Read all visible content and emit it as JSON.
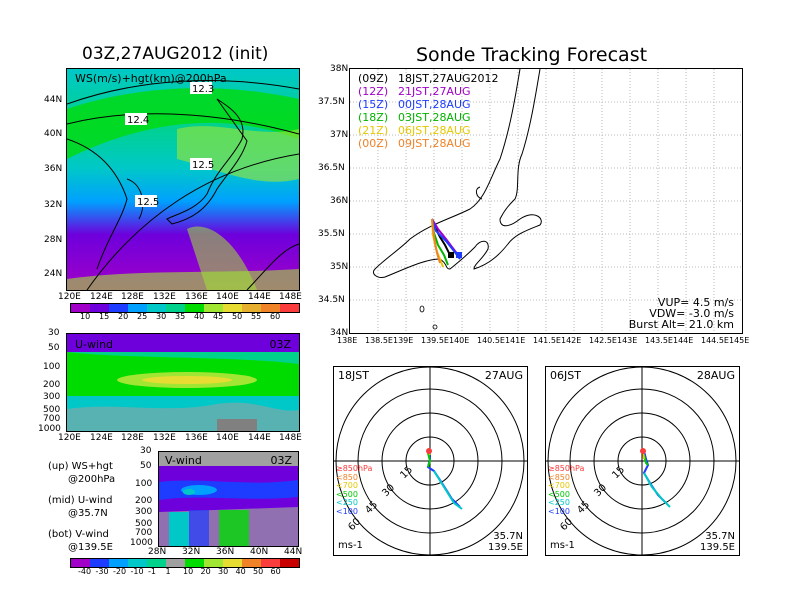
{
  "left": {
    "title": "03Z,27AUG2012 (init)",
    "map": {
      "label": "WS(m/s)+hgt(km)@200hPa",
      "lat_ticks": [
        "44N",
        "40N",
        "36N",
        "32N",
        "28N",
        "24N"
      ],
      "lon_ticks": [
        "120E",
        "124E",
        "128E",
        "132E",
        "136E",
        "140E",
        "144E",
        "148E"
      ],
      "contour_labels": [
        "12.3",
        "12.4",
        "12.5",
        "12.5"
      ]
    },
    "ws_colorbar": [
      "10",
      "15",
      "20",
      "25",
      "30",
      "35",
      "40",
      "45",
      "50",
      "55",
      "60"
    ],
    "ws_colors": [
      "#a000c8",
      "#6e00dc",
      "#1e3cff",
      "#00a0ff",
      "#00c8c8",
      "#00d28c",
      "#00dc00",
      "#a0e632",
      "#e6dc32",
      "#e6af2d",
      "#f08228",
      "#fa3c3c"
    ],
    "uwind": {
      "label": "U-wind",
      "time": "03Z",
      "p_ticks": [
        "30",
        "50",
        "100",
        "200",
        "300",
        "500",
        "700",
        "1000"
      ],
      "lon_ticks": [
        "120E",
        "124E",
        "128E",
        "132E",
        "136E",
        "140E",
        "144E",
        "148E"
      ]
    },
    "vwind": {
      "label": "V-wind",
      "time": "03Z",
      "p_ticks": [
        "30",
        "50",
        "100",
        "200",
        "300",
        "500",
        "700",
        "1000"
      ],
      "lat_ticks": [
        "28N",
        "32N",
        "36N",
        "40N",
        "44N"
      ]
    },
    "legend": [
      {
        "a": "(up) WS+hgt",
        "b": "@200hPa"
      },
      {
        "a": "(mid) U-wind",
        "b": "@35.7N"
      },
      {
        "a": "(bot) V-wind",
        "b": "@139.5E"
      }
    ],
    "v_colorbar": [
      "-40",
      "-30",
      "-20",
      "-10",
      "-1",
      "1",
      "10",
      "20",
      "30",
      "40",
      "50",
      "60"
    ],
    "v_colors": [
      "#a000c8",
      "#1e3cff",
      "#00a0ff",
      "#00c8c8",
      "#00d28c",
      "#a0a0a0",
      "#00dc00",
      "#a0e632",
      "#e6dc32",
      "#f08228",
      "#fa3c3c",
      "#c80000"
    ]
  },
  "right": {
    "title": "Sonde Tracking Forecast",
    "track_map": {
      "lat_ticks": [
        "38N",
        "37.5N",
        "37N",
        "36.5N",
        "36N",
        "35.5N",
        "35N",
        "34.5N",
        "34N"
      ],
      "lon_ticks": [
        "138E",
        "138.5E",
        "139E",
        "139.5E",
        "140E",
        "140.5E",
        "141E",
        "141.5E",
        "142E",
        "142.5E",
        "143E",
        "143.5E",
        "144E",
        "144.5E",
        "145E"
      ],
      "legend": [
        {
          "code": "(09Z)",
          "time": "18JST,27AUG2012",
          "color": "#000000"
        },
        {
          "code": "(12Z)",
          "time": "21JST,27AUG",
          "color": "#a000c8"
        },
        {
          "code": "(15Z)",
          "time": "00JST,28AUG",
          "color": "#1e3cff"
        },
        {
          "code": "(18Z)",
          "time": "03JST,28AUG",
          "color": "#00b400"
        },
        {
          "code": "(21Z)",
          "time": "06JST,28AUG",
          "color": "#e6c800"
        },
        {
          "code": "(00Z)",
          "time": "09JST,28AUG",
          "color": "#f08228"
        }
      ],
      "params": [
        "VUP= 4.5 m/s",
        "VDW= -3.0 m/s",
        "Burst Alt= 21.0 km"
      ]
    },
    "hodo_left": {
      "time": "18JST",
      "date": "27AUG",
      "rings": [
        "15",
        "30",
        "45",
        "60"
      ],
      "levels": [
        {
          "t": "≥850hPa",
          "c": "#fa3c3c"
        },
        {
          "t": "<850",
          "c": "#f08228"
        },
        {
          "t": "<700",
          "c": "#e6c800"
        },
        {
          "t": "<500",
          "c": "#00c800"
        },
        {
          "t": "<250",
          "c": "#00c8c8"
        },
        {
          "t": "<100",
          "c": "#1e3cff"
        }
      ],
      "unit": "ms-1",
      "lat": "35.7N",
      "lon": "139.5E"
    },
    "hodo_right": {
      "time": "06JST",
      "date": "28AUG",
      "rings": [
        "15",
        "30",
        "45",
        "60"
      ],
      "levels": [
        {
          "t": "≥850hPa",
          "c": "#fa3c3c"
        },
        {
          "t": "<850",
          "c": "#f08228"
        },
        {
          "t": "<700",
          "c": "#e6c800"
        },
        {
          "t": "<500",
          "c": "#00c800"
        },
        {
          "t": "<250",
          "c": "#00c8c8"
        },
        {
          "t": "<100",
          "c": "#1e3cff"
        }
      ],
      "unit": "ms-1",
      "lat": "35.7N",
      "lon": "139.5E"
    }
  }
}
